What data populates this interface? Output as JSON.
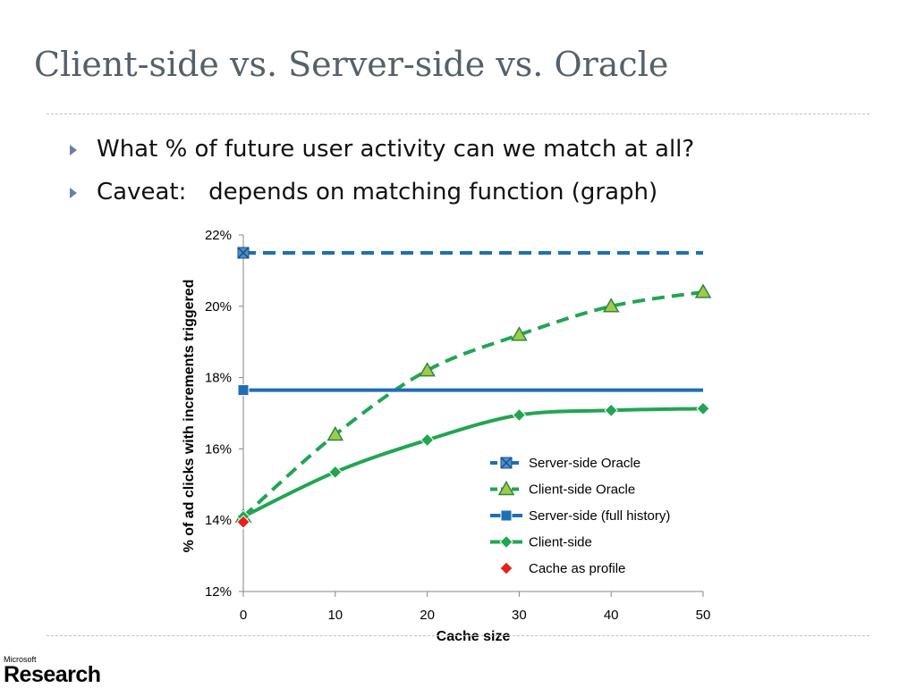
{
  "slide": {
    "title": "Client-side vs. Server-side vs. Oracle",
    "bullets": [
      "What % of future user activity can we match at all?",
      "Caveat:   depends on matching function (graph)"
    ]
  },
  "logo": {
    "microsoft": "Microsoft",
    "research": "Research"
  },
  "chart_data": {
    "type": "line",
    "title": "",
    "xlabel": "Cache size",
    "ylabel": "% of ad clicks with increments triggered",
    "xlim": [
      0,
      50
    ],
    "ylim": [
      12,
      22
    ],
    "x_ticks": [
      0,
      10,
      20,
      30,
      40,
      50
    ],
    "x_tick_labels": [
      "0",
      "10",
      "20",
      "30",
      "40",
      "50"
    ],
    "y_ticks": [
      12,
      14,
      16,
      18,
      20,
      22
    ],
    "y_tick_labels": [
      "12%",
      "14%",
      "16%",
      "18%",
      "20%",
      "22%"
    ],
    "grid": false,
    "legend_position": "bottom-right",
    "series": [
      {
        "name": "Server-side Oracle",
        "color": "#1f6fb4",
        "dash": "dashed",
        "marker": "x-square",
        "points": [
          [
            0,
            21.5
          ]
        ],
        "line_to_x": 50
      },
      {
        "name": "Client-side Oracle",
        "color": "#22a552",
        "dash": "dashed",
        "marker": "triangle",
        "points": [
          [
            0,
            14.1
          ],
          [
            10,
            16.4
          ],
          [
            20,
            18.2
          ],
          [
            30,
            19.2
          ],
          [
            40,
            20.0
          ],
          [
            50,
            20.4
          ]
        ]
      },
      {
        "name": "Server-side (full history)",
        "color": "#1f6fb4",
        "dash": "solid",
        "marker": "square",
        "points": [
          [
            0,
            17.65
          ]
        ],
        "line_to_x": 50
      },
      {
        "name": "Client-side",
        "color": "#22a552",
        "dash": "solid",
        "marker": "diamond",
        "points": [
          [
            0,
            14.1
          ],
          [
            10,
            15.35
          ],
          [
            20,
            16.25
          ],
          [
            30,
            16.95
          ],
          [
            40,
            17.08
          ],
          [
            50,
            17.13
          ]
        ]
      },
      {
        "name": "Cache as profile",
        "color": "#e32119",
        "dash": "none",
        "marker": "diamond",
        "points": [
          [
            0,
            13.95
          ]
        ]
      }
    ]
  }
}
